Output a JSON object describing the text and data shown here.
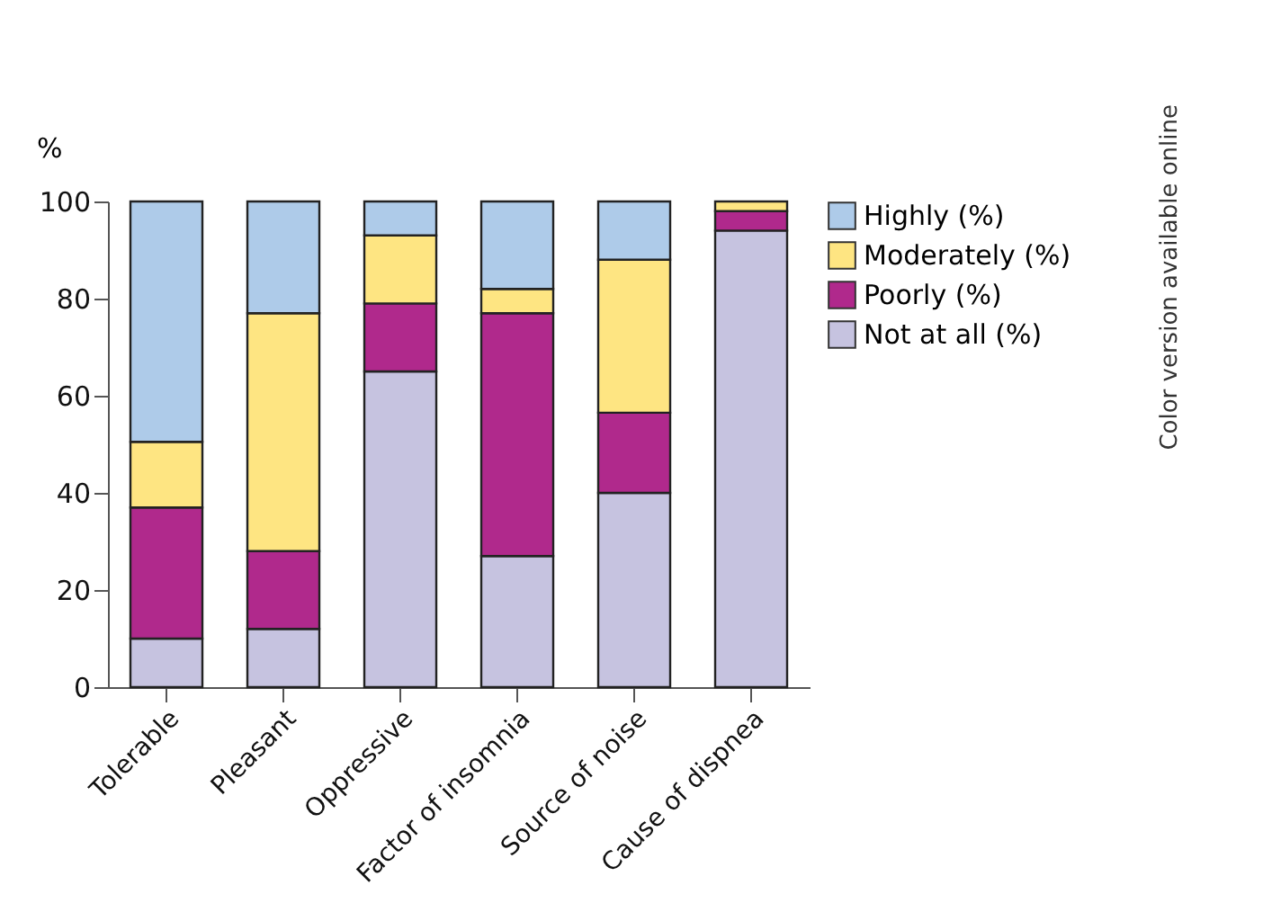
{
  "chart_data": {
    "type": "bar",
    "stacked": true,
    "ylabel": "%",
    "categories": [
      "Tolerable",
      "Pleasant",
      "Oppressive",
      "Factor of insomnia",
      "Source of noise",
      "Cause of dispnea"
    ],
    "series": [
      {
        "name": "Not at all (%)",
        "color": "#c6c3e0",
        "values": [
          10,
          12,
          65,
          27,
          40,
          94
        ]
      },
      {
        "name": "Poorly (%)",
        "color": "#b0298c",
        "values": [
          27,
          16,
          14,
          50,
          16.5,
          4
        ]
      },
      {
        "name": "Moderately (%)",
        "color": "#fee582",
        "values": [
          13.5,
          49,
          14,
          5,
          31.5,
          2
        ]
      },
      {
        "name": "Highly (%)",
        "color": "#aecbe9",
        "values": [
          49.5,
          23,
          7,
          18,
          12,
          0
        ]
      }
    ],
    "ylim": [
      0,
      100
    ],
    "yticks": [
      0,
      20,
      40,
      60,
      80,
      100
    ],
    "grid": false,
    "legend": "top right",
    "annotations": [
      "Color version available online"
    ]
  }
}
